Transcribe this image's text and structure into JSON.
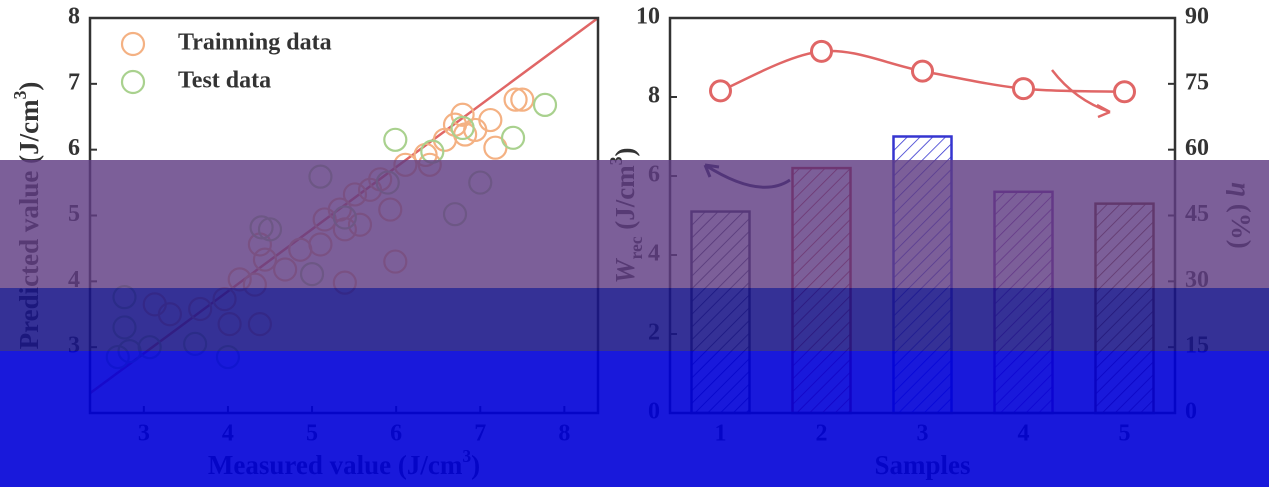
{
  "charts": [
    {
      "chart_data": {
        "type": "scatter",
        "xlabel": [
          {
            "text": "Measured value (J/cm"
          },
          {
            "text": "3",
            "style": "sup"
          },
          {
            "text": ")"
          }
        ],
        "ylabel": [
          {
            "text": "Predicted value (J/cm"
          },
          {
            "text": "3",
            "style": "sup"
          },
          {
            "text": ")"
          }
        ],
        "xlim": [
          2.36,
          8.4
        ],
        "ylim": [
          2,
          8
        ],
        "xticks": [
          3,
          4,
          5,
          6,
          7,
          8
        ],
        "yticks": [
          3,
          4,
          5,
          6,
          7,
          8
        ],
        "legend": "upper left",
        "series": [
          {
            "name": "Trainning data",
            "color": "#f4b183",
            "x": [
              6.79,
              6.7,
              6.82,
              6.58,
              6.94,
              7.12,
              7.42,
              7.5,
              7.18,
              6.11,
              6.35,
              5.81,
              5.93,
              5.69,
              5.51,
              5.33,
              5.15,
              5.1,
              5.39,
              5.57,
              4.86,
              4.68,
              4.38,
              4.44,
              4.32,
              4.14,
              3.96,
              3.67,
              3.31,
              3.13,
              4.38,
              4.02,
              5.39,
              5.99,
              6.4
            ],
            "y": [
              6.53,
              6.38,
              6.23,
              6.15,
              6.3,
              6.45,
              6.76,
              6.76,
              6.03,
              5.77,
              5.92,
              5.55,
              5.09,
              5.39,
              5.32,
              5.09,
              4.94,
              4.56,
              4.79,
              4.86,
              4.48,
              4.18,
              4.56,
              4.33,
              3.95,
              4.03,
              3.73,
              3.58,
              3.5,
              3.65,
              3.35,
              3.35,
              3.98,
              4.3,
              5.77
            ]
          },
          {
            "name": "Test data",
            "color": "#a9d18e",
            "x": [
              5.99,
              6.43,
              6.79,
              7.77,
              7.39,
              7.0,
              6.7,
              5.9,
              5.39,
              5.1,
              4.4,
              4.5,
              5.0,
              2.77,
              2.77,
              2.83,
              3.07,
              3.61,
              4.0,
              2.69
            ],
            "y": [
              6.15,
              5.97,
              6.33,
              6.68,
              6.18,
              5.5,
              5.02,
              5.5,
              4.97,
              5.59,
              4.82,
              4.79,
              4.11,
              3.76,
              3.3,
              2.94,
              3.0,
              3.05,
              2.85,
              2.85
            ]
          }
        ],
        "fit_line": {
          "color": "#e06666",
          "x": [
            2.36,
            8.4
          ],
          "y": [
            2.3,
            8.0
          ]
        }
      }
    },
    {
      "chart_data": {
        "type": "bar_line",
        "xlabel": [
          {
            "text": "Samples"
          }
        ],
        "ylabel": [
          {
            "text": "W",
            "style": "italic"
          },
          {
            "text": "rec",
            "style": "sub"
          },
          {
            "text": " (J/cm"
          },
          {
            "text": "3",
            "style": "sup"
          },
          {
            "text": ")"
          }
        ],
        "y2label": [
          {
            "text": "η",
            "style": "italic"
          },
          {
            "text": " (%)"
          }
        ],
        "categories": [
          "1",
          "2",
          "3",
          "4",
          "5"
        ],
        "ylim": [
          0,
          10
        ],
        "yticks": [
          0,
          2,
          4,
          6,
          8,
          10
        ],
        "y2lim": [
          0,
          90
        ],
        "y2ticks": [
          0,
          15,
          30,
          45,
          60,
          75,
          90
        ],
        "series": [
          {
            "type": "bar",
            "colors": [
              "#2e2a4f",
              "#b0202a",
              "#3535d0",
              "#7a2a9a",
              "#6b2a10"
            ],
            "values": [
              5.1,
              6.2,
              7.0,
              5.6,
              5.3
            ]
          },
          {
            "type": "line",
            "axis": "y2",
            "color": "#e06666",
            "values": [
              73.4,
              82.4,
              77.9,
              73.9,
              73.2
            ]
          }
        ]
      }
    }
  ]
}
